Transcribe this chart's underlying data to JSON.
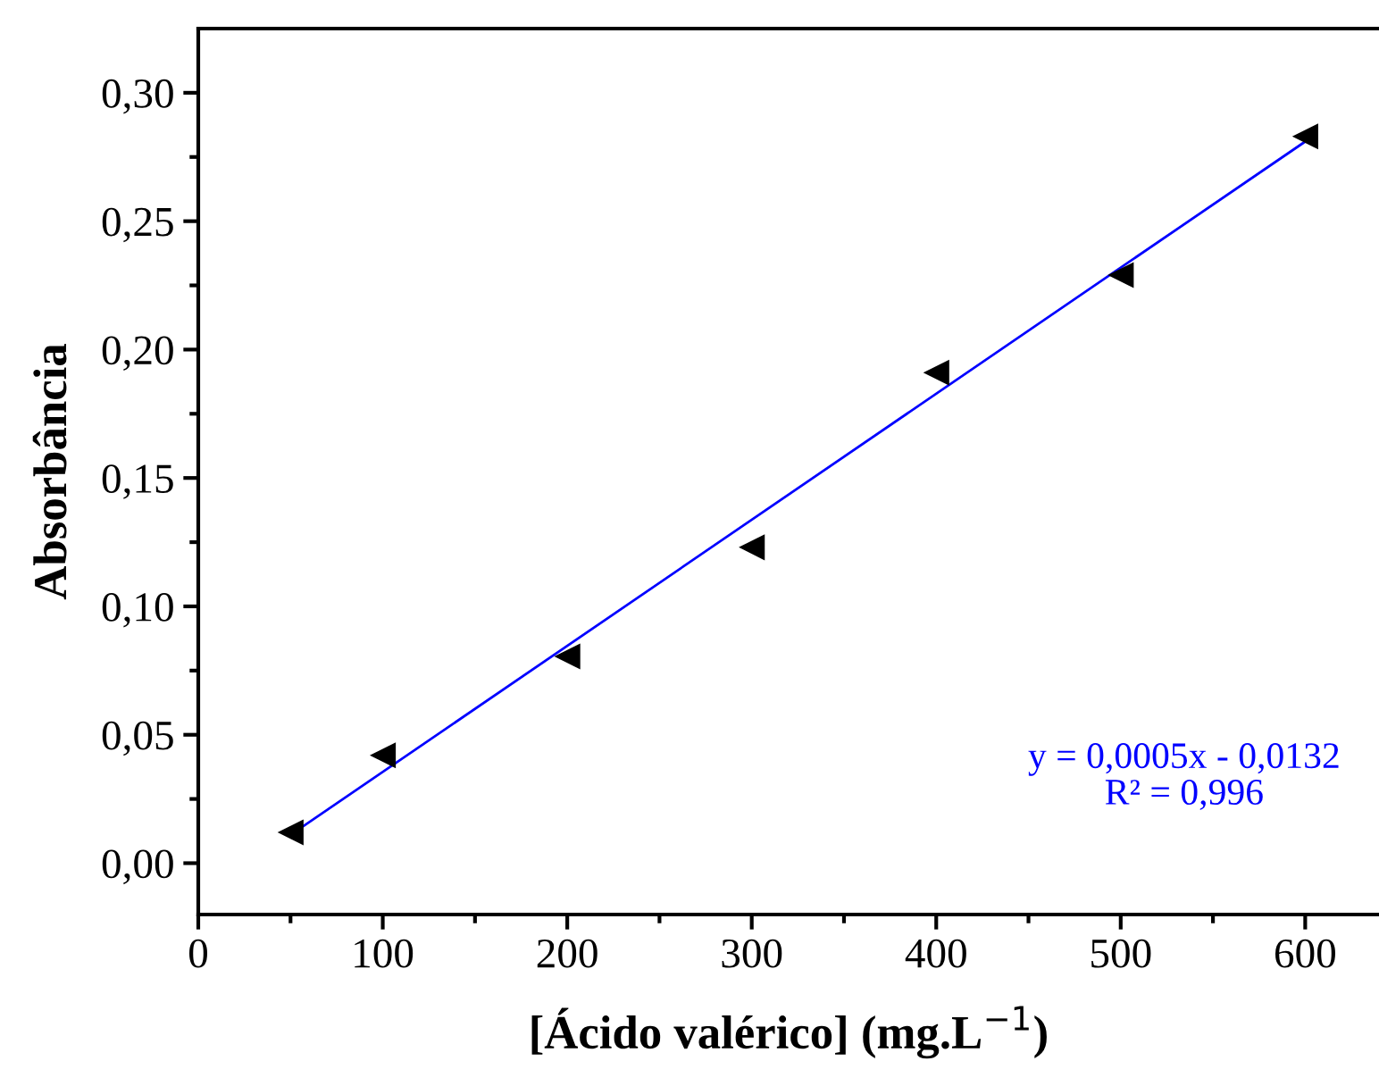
{
  "chart_data": {
    "type": "scatter",
    "xlabel": "[Ácido valérico] (mg.L$^{−1}$)",
    "ylabel": "Absorbância",
    "x": [
      50,
      100,
      200,
      300,
      400,
      500,
      600
    ],
    "series": [
      {
        "color": "#000000",
        "marker": "triangle",
        "values": [
          0.012,
          0.042,
          0.0805,
          0.123,
          0.191,
          0.229,
          0.283
        ]
      },
      {
        "type": "line",
        "color": "#0000ff",
        "marker": "none",
        "line_style": "solid",
        "x": [
          50,
          600
        ],
        "values": [
          0.011,
          0.281
        ]
      }
    ],
    "annotations": [
      "y = 0,0005x - 0,0132\nR² = 0,996"
    ],
    "xlim": [
      0,
      640
    ],
    "xticks": [
      0,
      100,
      200,
      300,
      400,
      500,
      600
    ],
    "ylim": [
      -0.02,
      0.325
    ],
    "yticks": [
      {
        "value": 0,
        "label": "0,00"
      },
      {
        "value": 0.05,
        "label": "0,05"
      },
      {
        "value": 0.1,
        "label": "0,10"
      },
      {
        "value": 0.15,
        "label": "0,15"
      },
      {
        "value": 0.2,
        "label": "0,20"
      },
      {
        "value": 0.25,
        "label": "0,25"
      },
      {
        "value": 0.3,
        "label": "0,30"
      }
    ],
    "grid": false,
    "legend": false
  }
}
